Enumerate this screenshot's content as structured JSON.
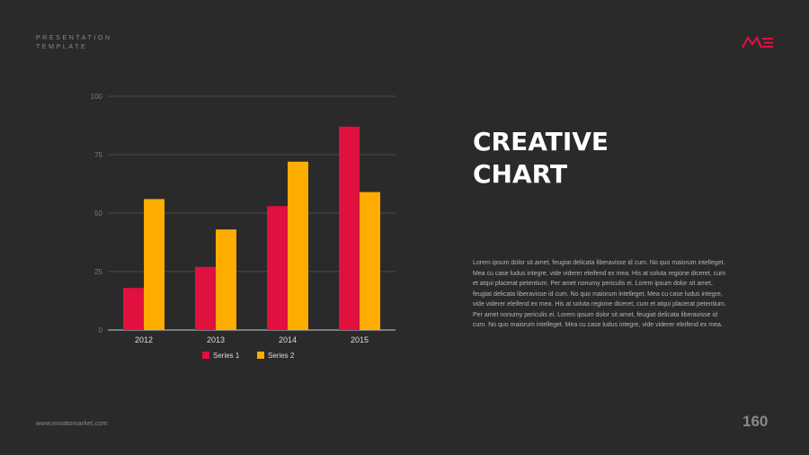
{
  "header": {
    "label_line1": "PRESENTATION",
    "label_line2": "TEMPLATE"
  },
  "logo": {
    "name": "brand-logo",
    "color": "#e0103f"
  },
  "slide": {
    "title_line1": "CREATIVE",
    "title_line2": "CHART",
    "body": "Lorem ipsum dolor sit amet, feugiat delicata liberavisse id cum. No quo maiorum intelleget. Mea cu case ludus integre, vide viderer eleifend ex mea. His at soluta regione diceret, cum et atqui placerat petentium. Per amet nonumy periculis ei. Lorem ipsum dolor sit amet, feugiat delicata liberavisse id cum. No quo maiorum intelleget. Mea cu case ludus integre, vide viderer eleifend ex mea. His at soluta regione diceret, cum et atqui placerat petentium. Per amet nonumy periculis ei. Lorem ipsum dolor sit amet, feugiat delicata liberavisse id cum. No quo maiorum intelleget. Mea cu case ludus integre, vide viderer eleifend ex mea."
  },
  "footer": {
    "url": "www.envatomarket.com",
    "page_number": "160"
  },
  "chart_data": {
    "type": "bar",
    "title": "",
    "xlabel": "",
    "ylabel": "",
    "categories": [
      "2012",
      "2013",
      "2014",
      "2015"
    ],
    "series": [
      {
        "name": "Series 1",
        "values": [
          18,
          27,
          53,
          87
        ],
        "color": "#e0103f"
      },
      {
        "name": "Series 2",
        "values": [
          56,
          43,
          72,
          59
        ],
        "color": "#ffad00"
      }
    ],
    "ylim": [
      0,
      100
    ],
    "yticks": [
      0,
      25,
      50,
      75,
      100
    ],
    "grid": true,
    "legend": "bottom"
  }
}
